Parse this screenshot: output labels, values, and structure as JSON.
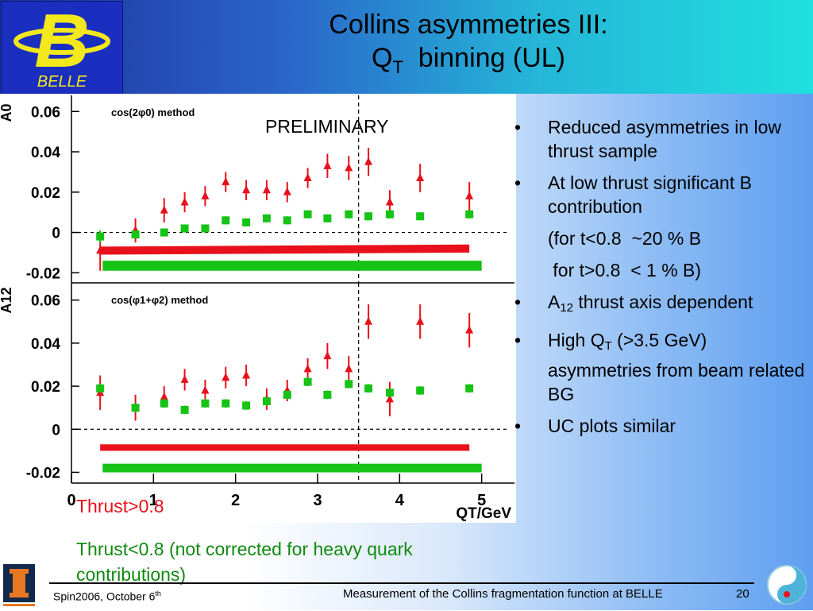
{
  "title": {
    "line1": "Collins asymmetries III:",
    "line2_pre": "Q",
    "line2_sub": "T",
    "line2_post": "  binning (UL)"
  },
  "logo": {
    "text": "BELLE",
    "letter": "B"
  },
  "preliminary": "PRELIMINARY",
  "bullets": [
    {
      "text": "Reduced asymmetries in low thrust sample"
    },
    {
      "text": "At low thrust significant B contribution"
    },
    {
      "text": "(for t<0.8  ~20 % B"
    },
    {
      "text": " for t>0.8  < 1 % B)"
    },
    {
      "pre": "A",
      "sub": "12",
      "post": " thrust axis dependent"
    },
    {
      "pre": "High Q",
      "sub": "T",
      "post": " (>3.5 GeV) asymmetries from beam related BG"
    },
    {
      "text": "UC plots similar"
    }
  ],
  "bullet_symbol": "•",
  "legend": {
    "red": "Thrust>0.8",
    "green": "Thrust<0.8 (not corrected for heavy quark contributions)"
  },
  "footer": {
    "left": "Spin2006, October 6",
    "left_sup": "th",
    "middle": "Measurement of the Collins fragmentation function at BELLE",
    "page": "20"
  },
  "colors": {
    "red": "#e8101a",
    "green": "#16c316",
    "title_from": "#1e2f9e",
    "title_to": "#1fe0dd"
  },
  "chart_data": [
    {
      "type": "scatter",
      "ylabel": "A0",
      "method_label": "cos(2φ0) method",
      "y_ticks": [
        "0.06",
        "0.04",
        "0.02",
        "0",
        "-0.02"
      ],
      "ylim": [
        -0.025,
        0.068
      ],
      "xlim": [
        0,
        5.4
      ],
      "vline_x": 3.5,
      "series": [
        {
          "name": "Thrust>0.8",
          "color": "#e8101a",
          "marker": "triangle",
          "x": [
            0.35,
            0.78,
            1.13,
            1.38,
            1.63,
            1.88,
            2.13,
            2.38,
            2.63,
            2.88,
            3.12,
            3.38,
            3.62,
            3.88,
            4.25,
            4.85
          ],
          "y": [
            -0.009,
            0.001,
            0.011,
            0.015,
            0.018,
            0.025,
            0.021,
            0.021,
            0.02,
            0.027,
            0.033,
            0.032,
            0.035,
            0.015,
            0.027,
            0.018
          ],
          "err": [
            0.01,
            0.006,
            0.006,
            0.005,
            0.005,
            0.005,
            0.005,
            0.005,
            0.005,
            0.005,
            0.006,
            0.006,
            0.007,
            0.006,
            0.007,
            0.007
          ]
        },
        {
          "name": "Thrust<0.8",
          "color": "#16c316",
          "marker": "square",
          "x": [
            0.35,
            0.78,
            1.13,
            1.38,
            1.63,
            1.88,
            2.13,
            2.38,
            2.63,
            2.88,
            3.12,
            3.38,
            3.62,
            3.88,
            4.25,
            4.85
          ],
          "y": [
            -0.002,
            -0.001,
            0.0,
            0.002,
            0.002,
            0.006,
            0.005,
            0.007,
            0.006,
            0.009,
            0.007,
            0.009,
            0.008,
            0.009,
            0.008,
            0.009
          ],
          "err": [
            0.003,
            0.002,
            0.002,
            0.002,
            0.002,
            0.002,
            0.002,
            0.002,
            0.002,
            0.002,
            0.002,
            0.002,
            0.002,
            0.002,
            0.002,
            0.002
          ]
        }
      ],
      "bands": [
        {
          "color": "#e8101a",
          "x": [
            0.35,
            4.85
          ],
          "y_top": [
            -0.007,
            -0.006
          ],
          "y_bottom": [
            -0.011,
            -0.01
          ]
        },
        {
          "color": "#16c316",
          "x": [
            0.38,
            5.0
          ],
          "y_top": [
            -0.014,
            -0.014
          ],
          "y_bottom": [
            -0.019,
            -0.019
          ]
        }
      ]
    },
    {
      "type": "scatter",
      "ylabel": "A12",
      "method_label": "cos(φ1+φ2) method",
      "y_ticks": [
        "0.06",
        "0.04",
        "0.02",
        "0",
        "-0.02"
      ],
      "x_ticks": [
        "0",
        "1",
        "2",
        "3",
        "4",
        "5"
      ],
      "xlabel": "QT/GeV",
      "ylim": [
        -0.025,
        0.068
      ],
      "xlim": [
        0,
        5.4
      ],
      "vline_x": 3.5,
      "series": [
        {
          "name": "Thrust>0.8",
          "color": "#e8101a",
          "marker": "triangle",
          "x": [
            0.35,
            0.78,
            1.13,
            1.38,
            1.63,
            1.88,
            2.13,
            2.38,
            2.63,
            2.88,
            3.12,
            3.38,
            3.62,
            3.88,
            4.25,
            4.85
          ],
          "y": [
            0.017,
            0.01,
            0.015,
            0.023,
            0.018,
            0.024,
            0.025,
            0.014,
            0.018,
            0.028,
            0.034,
            0.028,
            0.05,
            0.014,
            0.05,
            0.046
          ],
          "err": [
            0.008,
            0.006,
            0.005,
            0.005,
            0.005,
            0.005,
            0.005,
            0.005,
            0.005,
            0.005,
            0.006,
            0.006,
            0.008,
            0.008,
            0.008,
            0.008
          ]
        },
        {
          "name": "Thrust<0.8",
          "color": "#16c316",
          "marker": "square",
          "x": [
            0.35,
            0.78,
            1.13,
            1.38,
            1.63,
            1.88,
            2.13,
            2.38,
            2.63,
            2.88,
            3.12,
            3.38,
            3.62,
            3.88,
            4.25,
            4.85
          ],
          "y": [
            0.019,
            0.01,
            0.012,
            0.009,
            0.012,
            0.012,
            0.011,
            0.013,
            0.016,
            0.022,
            0.016,
            0.021,
            0.019,
            0.017,
            0.018,
            0.019
          ],
          "err": [
            0.002,
            0.002,
            0.002,
            0.002,
            0.002,
            0.002,
            0.002,
            0.002,
            0.002,
            0.002,
            0.002,
            0.002,
            0.002,
            0.002,
            0.002,
            0.002
          ]
        }
      ],
      "bands": [
        {
          "color": "#e8101a",
          "x": [
            0.35,
            4.85
          ],
          "y_top": [
            -0.007,
            -0.007
          ],
          "y_bottom": [
            -0.01,
            -0.01
          ]
        },
        {
          "color": "#16c316",
          "x": [
            0.38,
            5.0
          ],
          "y_top": [
            -0.016,
            -0.016
          ],
          "y_bottom": [
            -0.02,
            -0.02
          ]
        }
      ]
    }
  ]
}
